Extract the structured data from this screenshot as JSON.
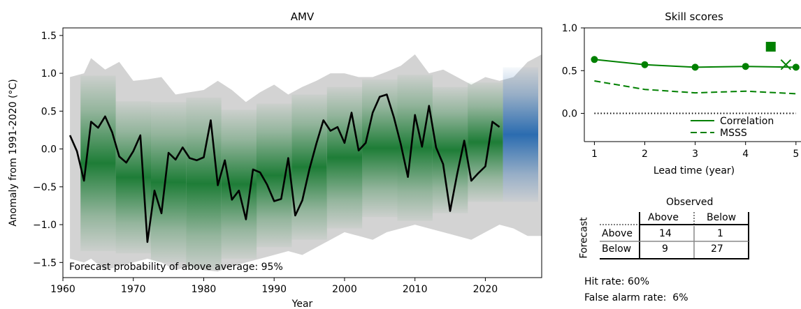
{
  "chart_data": [
    {
      "type": "line",
      "title": "AMV",
      "xlabel": "Year",
      "ylabel": "Anomaly from 1991-2020 (°C)",
      "xlim": [
        1960,
        2028
      ],
      "ylim": [
        -1.7,
        1.6
      ],
      "x_ticks": [
        "1960",
        "1970",
        "1980",
        "1990",
        "2000",
        "2010",
        "2020"
      ],
      "y_ticks": [
        "1.5",
        "1.0",
        "0.5",
        "0.0",
        "−0.5",
        "−1.0",
        "−1.5"
      ],
      "observed": {
        "years": [
          1961,
          1962,
          1963,
          1964,
          1965,
          1966,
          1967,
          1968,
          1969,
          1970,
          1971,
          1972,
          1973,
          1974,
          1975,
          1976,
          1977,
          1978,
          1979,
          1980,
          1981,
          1982,
          1983,
          1984,
          1985,
          1986,
          1987,
          1988,
          1989,
          1990,
          1991,
          1992,
          1993,
          1994,
          1995,
          1996,
          1997,
          1998,
          1999,
          2000,
          2001,
          2002,
          2003,
          2004,
          2005,
          2006,
          2007,
          2008,
          2009,
          2010,
          2011,
          2012,
          2013,
          2014,
          2015,
          2016,
          2017,
          2018,
          2019,
          2020,
          2021,
          2022
        ],
        "values": [
          0.18,
          -0.03,
          -0.42,
          0.36,
          0.28,
          0.43,
          0.22,
          -0.1,
          -0.18,
          -0.03,
          0.18,
          -1.23,
          -0.55,
          -0.85,
          -0.05,
          -0.14,
          0.02,
          -0.12,
          -0.15,
          -0.11,
          0.38,
          -0.48,
          -0.15,
          -0.67,
          -0.55,
          -0.93,
          -0.27,
          -0.31,
          -0.47,
          -0.69,
          -0.66,
          -0.12,
          -0.88,
          -0.68,
          -0.27,
          0.07,
          0.38,
          0.24,
          0.29,
          0.08,
          0.48,
          -0.02,
          0.08,
          0.48,
          0.69,
          0.72,
          0.42,
          0.06,
          -0.37,
          0.45,
          0.03,
          0.57,
          0.02,
          -0.2,
          -0.82,
          -0.33,
          0.11,
          -0.42,
          -0.32,
          -0.23,
          0.36,
          0.29
        ]
      },
      "hindcast_columns": [
        {
          "start": 1963,
          "end": 1967,
          "low": -1.35,
          "high": 0.97
        },
        {
          "start": 1968,
          "end": 1972,
          "low": -1.38,
          "high": 0.63
        },
        {
          "start": 1973,
          "end": 1977,
          "low": -1.5,
          "high": 0.62
        },
        {
          "start": 1978,
          "end": 1982,
          "low": -1.6,
          "high": 0.68
        },
        {
          "start": 1983,
          "end": 1987,
          "low": -1.45,
          "high": 0.52
        },
        {
          "start": 1988,
          "end": 1992,
          "low": -1.3,
          "high": 0.6
        },
        {
          "start": 1993,
          "end": 1997,
          "low": -1.2,
          "high": 0.72
        },
        {
          "start": 1998,
          "end": 2002,
          "low": -1.05,
          "high": 0.82
        },
        {
          "start": 2003,
          "end": 2007,
          "low": -0.9,
          "high": 0.92
        },
        {
          "start": 2008,
          "end": 2012,
          "low": -0.95,
          "high": 0.98
        },
        {
          "start": 2013,
          "end": 2017,
          "low": -0.85,
          "high": 0.82
        },
        {
          "start": 2018,
          "end": 2022,
          "low": -0.7,
          "high": 0.88
        }
      ],
      "forecast_column": {
        "start": 2023,
        "end": 2027,
        "low": -0.7,
        "high": 1.08
      },
      "envelope": {
        "years": [
          1961,
          1963,
          1964,
          1966,
          1968,
          1970,
          1972,
          1974,
          1976,
          1978,
          1980,
          1982,
          1984,
          1986,
          1988,
          1990,
          1992,
          1994,
          1996,
          1998,
          2000,
          2002,
          2004,
          2006,
          2008,
          2010,
          2012,
          2014,
          2016,
          2018,
          2020,
          2022,
          2024,
          2026,
          2028
        ],
        "upper": [
          0.95,
          1.0,
          1.2,
          1.05,
          1.15,
          0.9,
          0.92,
          0.95,
          0.72,
          0.75,
          0.78,
          0.9,
          0.78,
          0.62,
          0.75,
          0.85,
          0.72,
          0.82,
          0.9,
          1.0,
          1.0,
          0.95,
          0.95,
          1.02,
          1.1,
          1.25,
          1.0,
          1.05,
          0.95,
          0.85,
          0.95,
          0.9,
          0.95,
          1.15,
          1.25
        ],
        "lower": [
          -1.45,
          -1.5,
          -1.45,
          -1.6,
          -1.55,
          -1.5,
          -1.45,
          -1.5,
          -1.6,
          -1.55,
          -1.6,
          -1.62,
          -1.55,
          -1.5,
          -1.45,
          -1.4,
          -1.35,
          -1.4,
          -1.3,
          -1.2,
          -1.1,
          -1.15,
          -1.2,
          -1.1,
          -1.05,
          -1.0,
          -1.05,
          -1.1,
          -1.15,
          -1.2,
          -1.1,
          -1.0,
          -1.05,
          -1.15,
          -1.15
        ]
      },
      "annotation": "Forecast probability of above average: 95%",
      "colors": {
        "observed": "#000000",
        "hindcast": "#1e7d37",
        "forecast": "#2b6cb0",
        "envelope": "#d3d3d3"
      }
    },
    {
      "type": "line",
      "title": "Skill scores",
      "xlabel": "Lead time (year)",
      "xlim": [
        0.8,
        5.1
      ],
      "ylim": [
        -0.33,
        1.0
      ],
      "x_ticks": [
        "1",
        "2",
        "3",
        "4",
        "5"
      ],
      "y_ticks": [
        "1.0",
        "0.5",
        "0.0"
      ],
      "series": [
        {
          "name": "Correlation",
          "style": "solid",
          "x": [
            1,
            2,
            3,
            4,
            5
          ],
          "values": [
            0.63,
            0.57,
            0.54,
            0.55,
            0.54
          ],
          "markers": true
        },
        {
          "name": "MSSS",
          "style": "dashed",
          "x": [
            1,
            2,
            3,
            4,
            5
          ],
          "values": [
            0.38,
            0.28,
            0.24,
            0.26,
            0.23
          ],
          "markers": false
        }
      ],
      "extra_markers": [
        {
          "shape": "square",
          "x": 4.5,
          "y": 0.78
        },
        {
          "shape": "x",
          "x": 4.8,
          "y": 0.57
        }
      ],
      "zero_line": "dotted",
      "legend_position": "bottom-right",
      "color": "#008000"
    }
  ],
  "contingency": {
    "observed_label": "Observed",
    "forecast_label": "Forecast",
    "col_headers": [
      "Above",
      "Below"
    ],
    "row_headers": [
      "Above",
      "Below"
    ],
    "cells": [
      [
        "14",
        "1"
      ],
      [
        "9",
        "27"
      ]
    ]
  },
  "rates": {
    "hit_rate": "Hit rate: 60%",
    "false_alarm_rate": "False alarm rate:  6%"
  }
}
